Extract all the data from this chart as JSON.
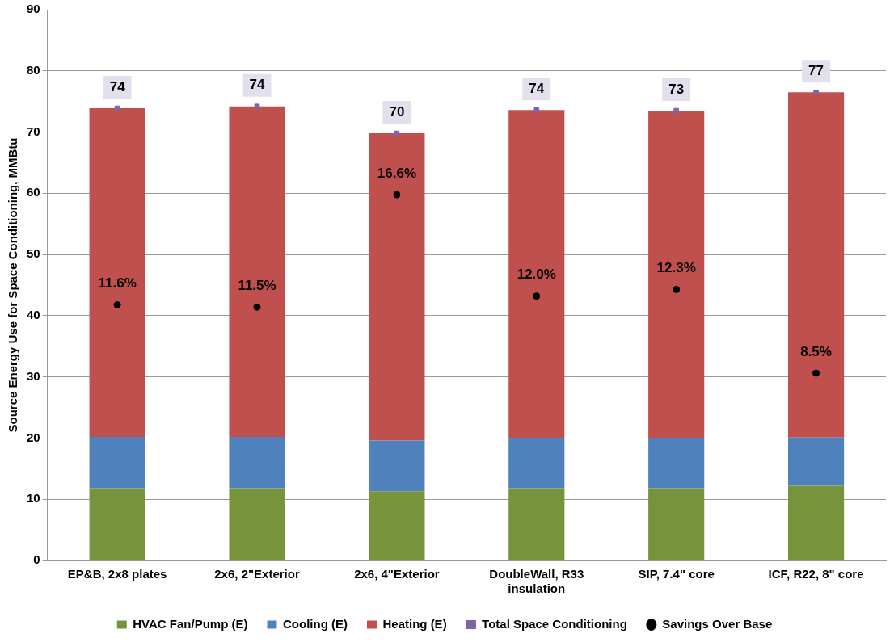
{
  "chart_data": {
    "type": "bar",
    "stacked": true,
    "ylabel": "Source Energy Use for Space Conditioning, MMBtu",
    "categories": [
      "EP&B, 2x8 plates",
      "2x6, 2\"Exterior",
      "2x6, 4\"Exterior",
      "DoubleWall, R33 insulation",
      "SIP, 7.4\" core",
      "ICF, R22, 8\" core"
    ],
    "ylim": [
      0,
      90
    ],
    "yticks": [
      0,
      10,
      20,
      30,
      40,
      50,
      60,
      70,
      80,
      90
    ],
    "grid": "y",
    "legend": "bottom",
    "series": [
      {
        "name": "HVAC Fan/Pump (E)",
        "color": "#77933c",
        "values": [
          11.8,
          11.8,
          11.3,
          11.8,
          11.8,
          12.2
        ]
      },
      {
        "name": "Cooling (E)",
        "color": "#4f81bd",
        "values": [
          8.4,
          8.4,
          8.3,
          8.2,
          8.2,
          7.9
        ]
      },
      {
        "name": "Heating (E)",
        "color": "#c0504d",
        "values": [
          53.7,
          54.0,
          50.2,
          53.6,
          53.5,
          56.4
        ]
      },
      {
        "name": "Total Space Conditioning",
        "type": "scatter",
        "marker": "square",
        "color": "#8064a2",
        "values": [
          73.9,
          74.2,
          69.8,
          73.6,
          73.5,
          76.5
        ],
        "value_labels": [
          "74",
          "74",
          "70",
          "74",
          "73",
          "77"
        ]
      },
      {
        "name": "Savings Over Base",
        "type": "scatter",
        "marker": "circle",
        "axis": "y2",
        "color": "#000000",
        "values": [
          11.6,
          11.5,
          16.6,
          12.0,
          12.3,
          8.5
        ],
        "value_labels": [
          "11.6%",
          "11.5%",
          "16.6%",
          "12.0%",
          "12.3%",
          "8.5%"
        ]
      }
    ]
  }
}
